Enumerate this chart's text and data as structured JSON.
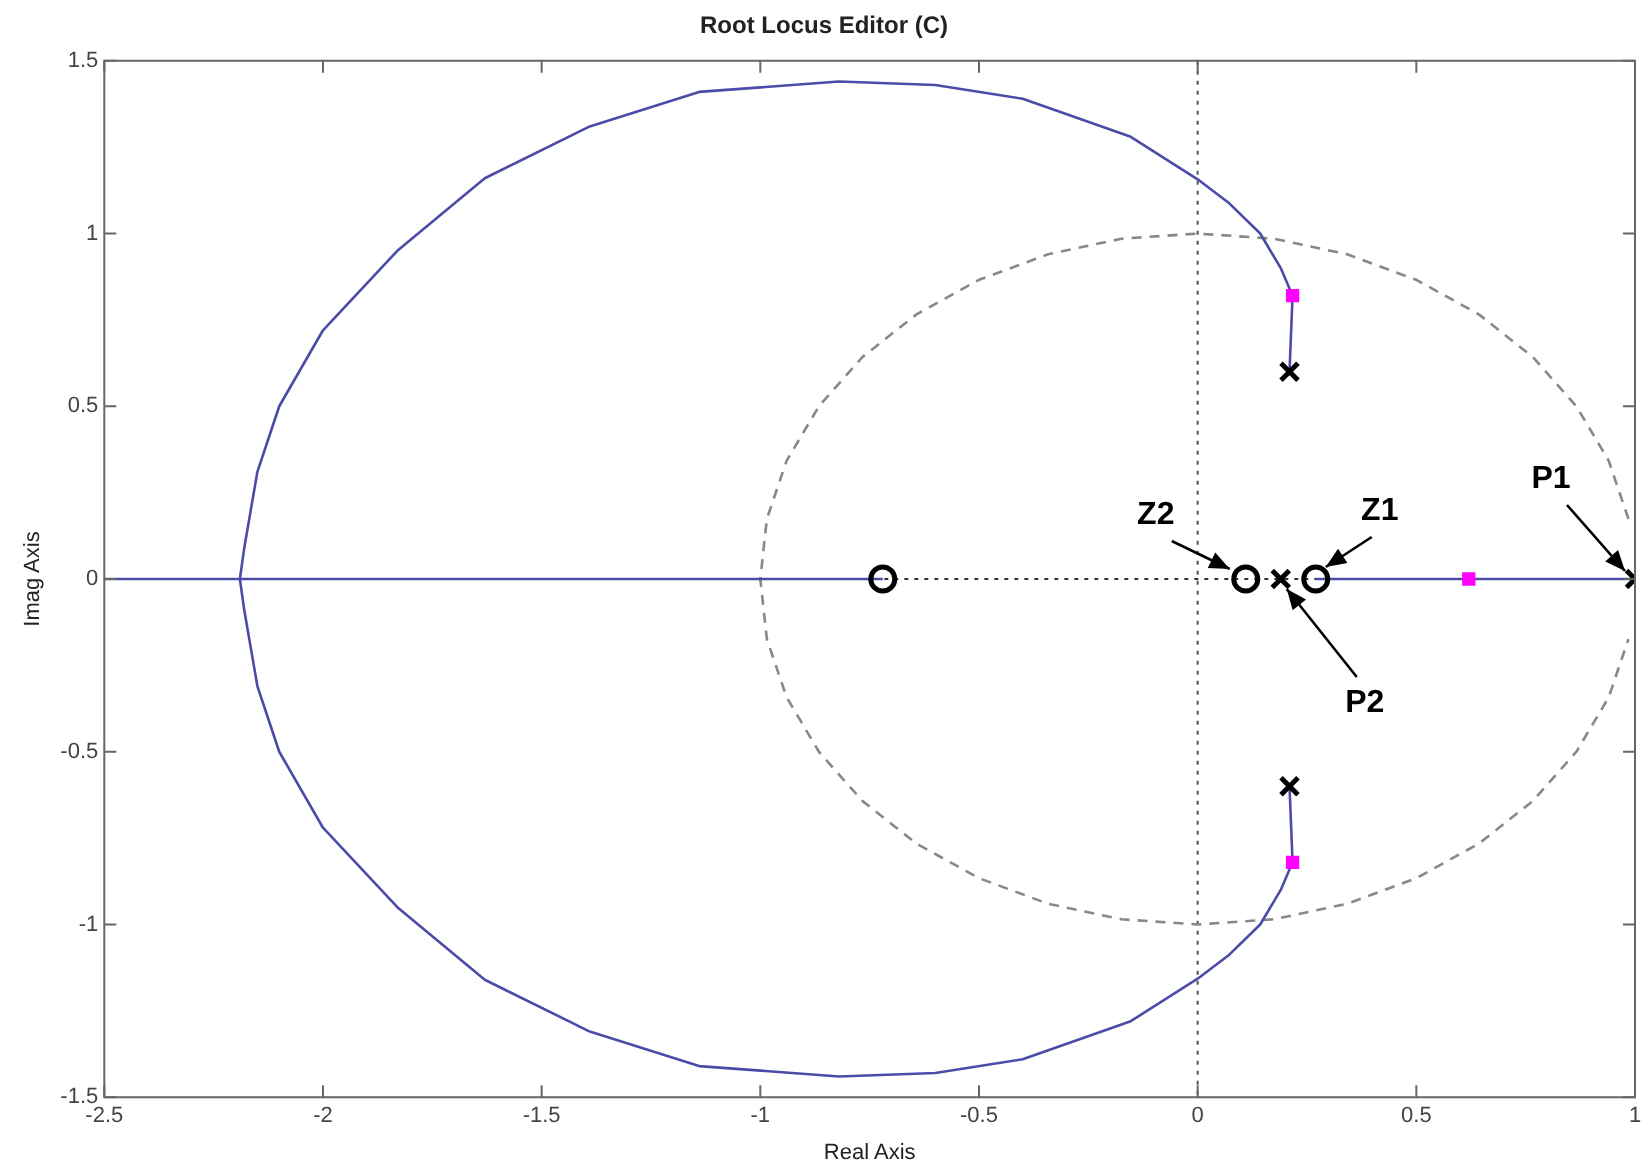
{
  "chart_data": {
    "type": "line",
    "title": "Root Locus Editor (C)",
    "xlabel": "Real Axis",
    "ylabel": "Imag Axis",
    "xlim": [
      -2.5,
      1
    ],
    "ylim": [
      -1.5,
      1.5
    ],
    "xticks": [
      -2.5,
      -2,
      -1.5,
      -1,
      -0.5,
      0,
      0.5,
      1
    ],
    "yticks": [
      -1.5,
      -1,
      -0.5,
      0,
      0.5,
      1,
      1.5
    ],
    "grid": false,
    "legend": false,
    "ref_lines": [
      {
        "axis": "x",
        "value": 0,
        "color": "#555555",
        "line_style": "dotted"
      },
      {
        "axis": "y",
        "value": 0,
        "color": "#333333",
        "line_style": "dotted"
      }
    ],
    "series": [
      {
        "type": "line",
        "color": "#888888",
        "line_style": "dashed",
        "marker": "none",
        "x": [
          0.985,
          0.94,
          0.866,
          0.766,
          0.643,
          0.5,
          0.342,
          0.174,
          0,
          -0.174,
          -0.342,
          -0.5,
          -0.643,
          -0.766,
          -0.866,
          -0.94,
          -0.985,
          -1,
          -0.985,
          -0.94,
          -0.866,
          -0.766,
          -0.643,
          -0.5,
          -0.342,
          -0.174,
          0,
          0.174,
          0.342,
          0.5,
          0.643,
          0.766,
          0.866,
          0.94,
          0.985
        ],
        "values": [
          0.174,
          0.342,
          0.5,
          0.643,
          0.766,
          0.866,
          0.94,
          0.985,
          1,
          0.985,
          0.94,
          0.866,
          0.766,
          0.643,
          0.5,
          0.342,
          0.174,
          0,
          -0.174,
          -0.342,
          -0.5,
          -0.643,
          -0.766,
          -0.866,
          -0.94,
          -0.985,
          -1,
          -0.985,
          -0.94,
          -0.866,
          -0.766,
          -0.643,
          -0.5,
          -0.342,
          -0.174
        ]
      },
      {
        "type": "line",
        "color": "#4b4ba8",
        "line_style": "solid",
        "marker": "none",
        "x": [
          0.21,
          0.217,
          0.19,
          0.143,
          0.07,
          0,
          -0.153,
          -0.4,
          -0.6,
          -0.82,
          -1.14,
          -1.39,
          -1.63,
          -1.83,
          -2.0,
          -2.1,
          -2.15,
          -2.18,
          -2.19,
          -2.18,
          -2.15,
          -2.1,
          -2.0,
          -1.83,
          -1.63,
          -1.39,
          -1.14,
          -0.82,
          -0.6,
          -0.4,
          -0.153,
          0,
          0.07,
          0.143,
          0.19,
          0.217,
          0.21
        ],
        "values": [
          -0.6,
          -0.82,
          -0.9,
          -1.0,
          -1.09,
          -1.157,
          -1.28,
          -1.39,
          -1.43,
          -1.44,
          -1.41,
          -1.31,
          -1.16,
          -0.95,
          -0.72,
          -0.5,
          -0.31,
          -0.09,
          0,
          0.09,
          0.31,
          0.5,
          0.72,
          0.95,
          1.16,
          1.31,
          1.41,
          1.44,
          1.43,
          1.39,
          1.28,
          1.157,
          1.09,
          1.0,
          0.9,
          0.82,
          0.6
        ]
      },
      {
        "type": "line",
        "color": "#4b4ba8",
        "line_style": "solid",
        "marker": "none",
        "x": [
          -2.5,
          -0.72
        ],
        "values": [
          0,
          0
        ]
      },
      {
        "type": "line",
        "color": "#4b4ba8",
        "line_style": "solid",
        "marker": "none",
        "x": [
          0.27,
          1
        ],
        "values": [
          0,
          0
        ]
      },
      {
        "type": "scatter",
        "color": "#000000",
        "marker": "cross",
        "x": [
          0.21,
          0.21,
          0.19,
          1
        ],
        "values": [
          0.6,
          -0.6,
          0,
          0
        ]
      },
      {
        "type": "scatter",
        "color": "#000000",
        "marker": "circle",
        "x": [
          -0.72,
          0.11,
          0.27
        ],
        "values": [
          0,
          0,
          0
        ]
      },
      {
        "type": "scatter",
        "color": "#ff00ff",
        "marker": "square",
        "x": [
          0.217,
          0.217,
          0.62
        ],
        "values": [
          0.82,
          -0.82,
          0
        ]
      }
    ],
    "annotations": [
      {
        "text": "Z2",
        "x": 0.11,
        "y": 0
      },
      {
        "text": "Z1",
        "x": 0.27,
        "y": 0
      },
      {
        "text": "P1",
        "x": 1,
        "y": 0
      },
      {
        "text": "P2",
        "x": 0.19,
        "y": 0
      }
    ]
  }
}
